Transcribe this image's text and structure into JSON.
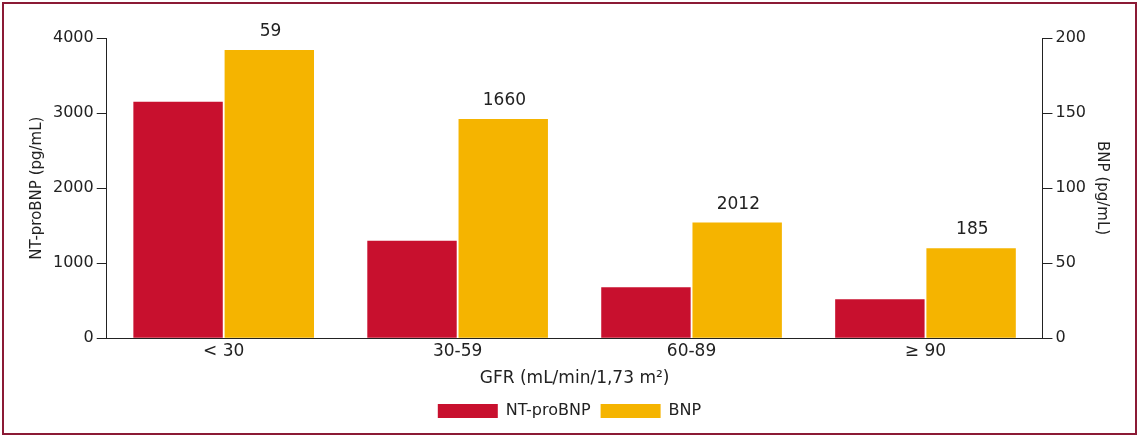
{
  "chart_data": {
    "type": "bar",
    "xlabel": "GFR (mL/min/1,73 m²)",
    "ylabel": "NT-proBNP (pg/mL)",
    "y2label": "BNP (pg/mL)",
    "categories": [
      "< 30",
      "30-59",
      "60-89",
      "≥ 90"
    ],
    "series": [
      {
        "name": "NT-proBNP",
        "color": "#c8102e",
        "values": [
          3150,
          1300,
          680,
          520
        ]
      },
      {
        "name": "BNP",
        "color": "#f5b400",
        "axis": "y2",
        "values": [
          192,
          146,
          77,
          60
        ]
      }
    ],
    "ylim": [
      0,
      4000
    ],
    "yticks": [
      0,
      1000,
      2000,
      3000,
      4000
    ],
    "y2lim": [
      0,
      200
    ],
    "y2ticks": [
      0,
      50,
      100,
      150,
      200
    ],
    "annotations": [
      "59",
      "1660",
      "2012",
      "185"
    ],
    "legend": "bottom",
    "grid": false
  }
}
